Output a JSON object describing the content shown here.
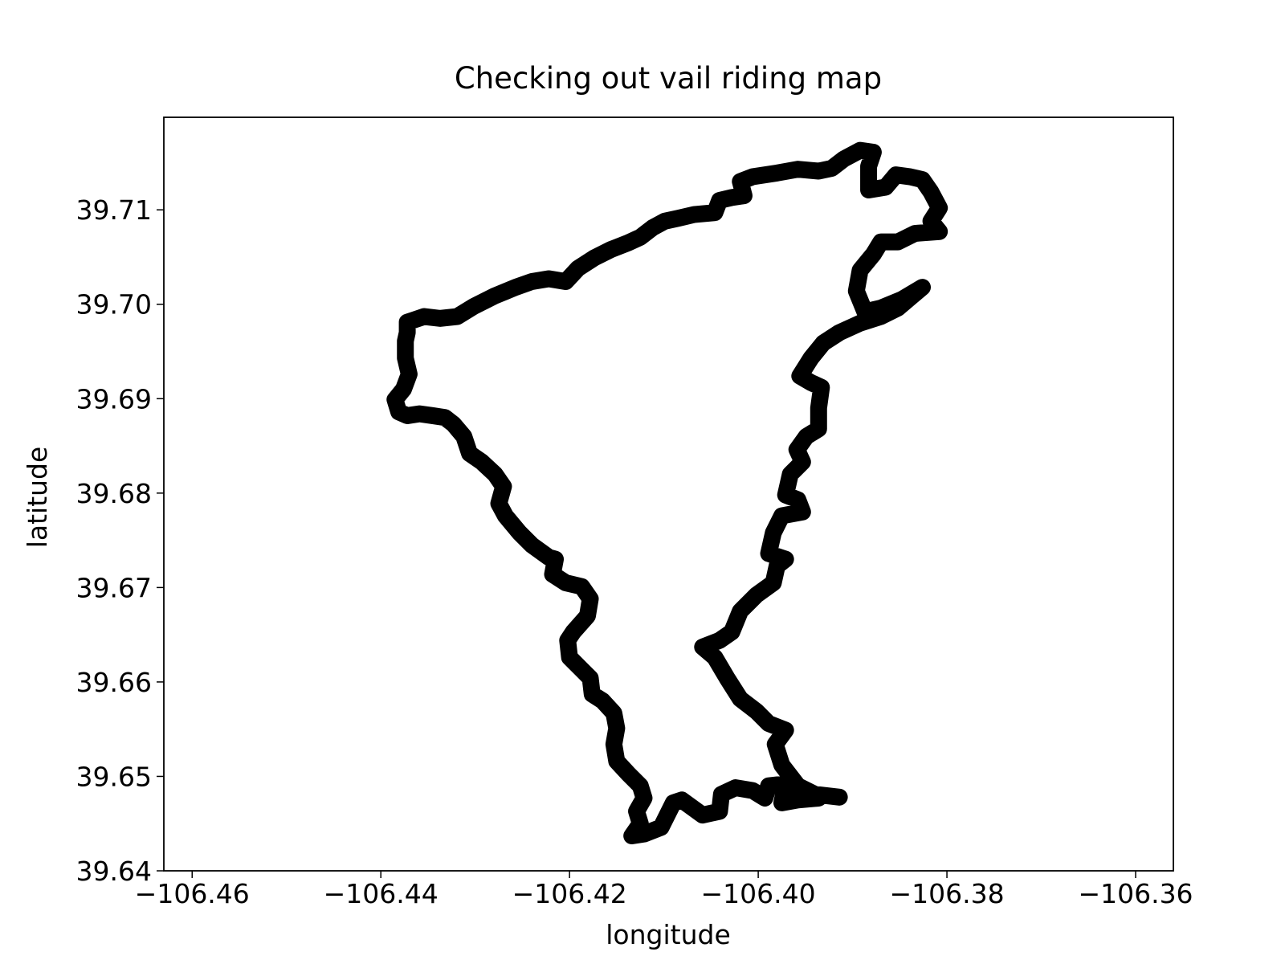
{
  "chart_data": {
    "type": "line",
    "title": "Checking out vail riding map",
    "xlabel": "longitude",
    "ylabel": "latitude",
    "color": "#000000",
    "xlim": [
      -106.463,
      -106.356
    ],
    "ylim": [
      39.64,
      39.7198
    ],
    "xticks": [
      {
        "value": -106.46,
        "label": "−106.46"
      },
      {
        "value": -106.44,
        "label": "−106.44"
      },
      {
        "value": -106.42,
        "label": "−106.42"
      },
      {
        "value": -106.4,
        "label": "−106.40"
      },
      {
        "value": -106.38,
        "label": "−106.38"
      },
      {
        "value": -106.36,
        "label": "−106.36"
      }
    ],
    "yticks": [
      39.64,
      39.65,
      39.66,
      39.67,
      39.68,
      39.69,
      {
        "value": 39.7,
        "label": "39.70"
      },
      39.71
    ],
    "x": [
      -106.3914,
      -106.394,
      -106.3958,
      -106.3975,
      -106.3982,
      -106.3971,
      -106.3989,
      -106.4002,
      -106.4019,
      -106.4033,
      -106.4046,
      -106.4059,
      -106.4041,
      -106.4028,
      -106.4019,
      -106.4002,
      -106.3984,
      -106.398,
      -106.3971,
      -106.3989,
      -106.3984,
      -106.3975,
      -106.3953,
      -106.3958,
      -106.3971,
      -106.3966,
      -106.3953,
      -106.3959,
      -106.3949,
      -106.3936,
      -106.3936,
      -106.3933,
      -106.3944,
      -106.3956,
      -106.3944,
      -106.3931,
      -106.3914,
      -106.3892,
      -106.387,
      -106.3852,
      -106.3826,
      -106.3848,
      -106.387,
      -106.3887,
      -106.3896,
      -106.3892,
      -106.3878,
      -106.387,
      -106.3852,
      -106.3834,
      -106.3808,
      -106.3817,
      -106.3808,
      -106.3817,
      -106.3826,
      -106.3839,
      -106.3854,
      -106.3865,
      -106.3883,
      -106.3883,
      -106.3878,
      -106.3892,
      -106.3909,
      -106.3922,
      -106.3936,
      -106.3958,
      -106.398,
      -106.4006,
      -106.4019,
      -106.4015,
      -106.4028,
      -106.4041,
      -106.4046,
      -106.4068,
      -106.4085,
      -106.4099,
      -106.4112,
      -106.4125,
      -106.4138,
      -106.4156,
      -106.4174,
      -106.4191,
      -106.4204,
      -106.4222,
      -106.424,
      -106.4257,
      -106.4279,
      -106.4301,
      -106.4319,
      -106.4337,
      -106.4354,
      -106.4372,
      -106.4372,
      -106.4374,
      -106.4374,
      -106.437,
      -106.4376,
      -106.4385,
      -106.4381,
      -106.4372,
      -106.4359,
      -106.4345,
      -106.4332,
      -106.4323,
      -106.4312,
      -106.4306,
      -106.4293,
      -106.4279,
      -106.427,
      -106.4275,
      -106.4268,
      -106.4253,
      -106.424,
      -106.4222,
      -106.4215,
      -106.4218,
      -106.4204,
      -106.4187,
      -106.4178,
      -106.4181,
      -106.4196,
      -106.4202,
      -106.42,
      -106.4187,
      -106.4178,
      -106.4176,
      -106.4165,
      -106.4153,
      -106.415,
      -106.4153,
      -106.415,
      -106.4138,
      -106.4125,
      -106.4121,
      -106.4129,
      -106.4125,
      -106.4134,
      -106.4121,
      -106.4103,
      -106.409,
      -106.4081,
      -106.4059,
      -106.4041,
      -106.4039,
      -106.4024,
      -106.4006,
      -106.3993,
      -106.3989,
      -106.3971,
      -106.3975,
      -106.3958,
      -106.3936
    ],
    "values": [
      39.6478,
      39.6481,
      39.649,
      39.6512,
      39.6534,
      39.6549,
      39.6556,
      39.6569,
      39.6582,
      39.6604,
      39.6626,
      39.6637,
      39.6644,
      39.6653,
      39.6675,
      39.6692,
      39.6705,
      39.6723,
      39.673,
      39.6736,
      39.6758,
      39.6776,
      39.678,
      39.6793,
      39.6798,
      39.682,
      39.6833,
      39.6846,
      39.686,
      39.6868,
      39.689,
      39.6912,
      39.6917,
      39.6924,
      39.6943,
      39.6959,
      39.697,
      39.698,
      39.6987,
      39.6996,
      39.7018,
      39.7005,
      39.6996,
      39.6992,
      39.7014,
      39.7036,
      39.7053,
      39.7066,
      39.7066,
      39.7075,
      39.7077,
      39.7088,
      39.7102,
      39.7119,
      39.7132,
      39.7135,
      39.7137,
      39.7124,
      39.7121,
      39.7146,
      39.7161,
      39.7163,
      39.7154,
      39.7144,
      39.7141,
      39.7143,
      39.7139,
      39.7135,
      39.713,
      39.7115,
      39.7113,
      39.711,
      39.7097,
      39.7095,
      39.7091,
      39.7088,
      39.7081,
      39.7071,
      39.7065,
      39.7058,
      39.7049,
      39.7038,
      39.7024,
      39.7027,
      39.7024,
      39.7018,
      39.7009,
      39.6998,
      39.6987,
      39.6985,
      39.6987,
      39.6981,
      39.697,
      39.6961,
      39.6943,
      39.6926,
      39.691,
      39.6899,
      39.6886,
      39.6882,
      39.6884,
      39.6882,
      39.688,
      39.6873,
      39.686,
      39.6842,
      39.6833,
      39.682,
      39.6807,
      39.6789,
      39.6776,
      39.6758,
      39.6745,
      39.6732,
      39.673,
      39.6714,
      39.6705,
      39.6701,
      39.6688,
      39.667,
      39.6653,
      39.6644,
      39.6626,
      39.6613,
      39.6604,
      39.6587,
      39.658,
      39.6567,
      39.6551,
      39.6534,
      39.6516,
      39.6503,
      39.649,
      39.6477,
      39.6463,
      39.645,
      39.6437,
      39.6439,
      39.6446,
      39.6472,
      39.6475,
      39.6459,
      39.6463,
      39.6481,
      39.6488,
      39.6485,
      39.6477,
      39.649,
      39.6492,
      39.6472,
      39.6475,
      39.6477
    ]
  }
}
